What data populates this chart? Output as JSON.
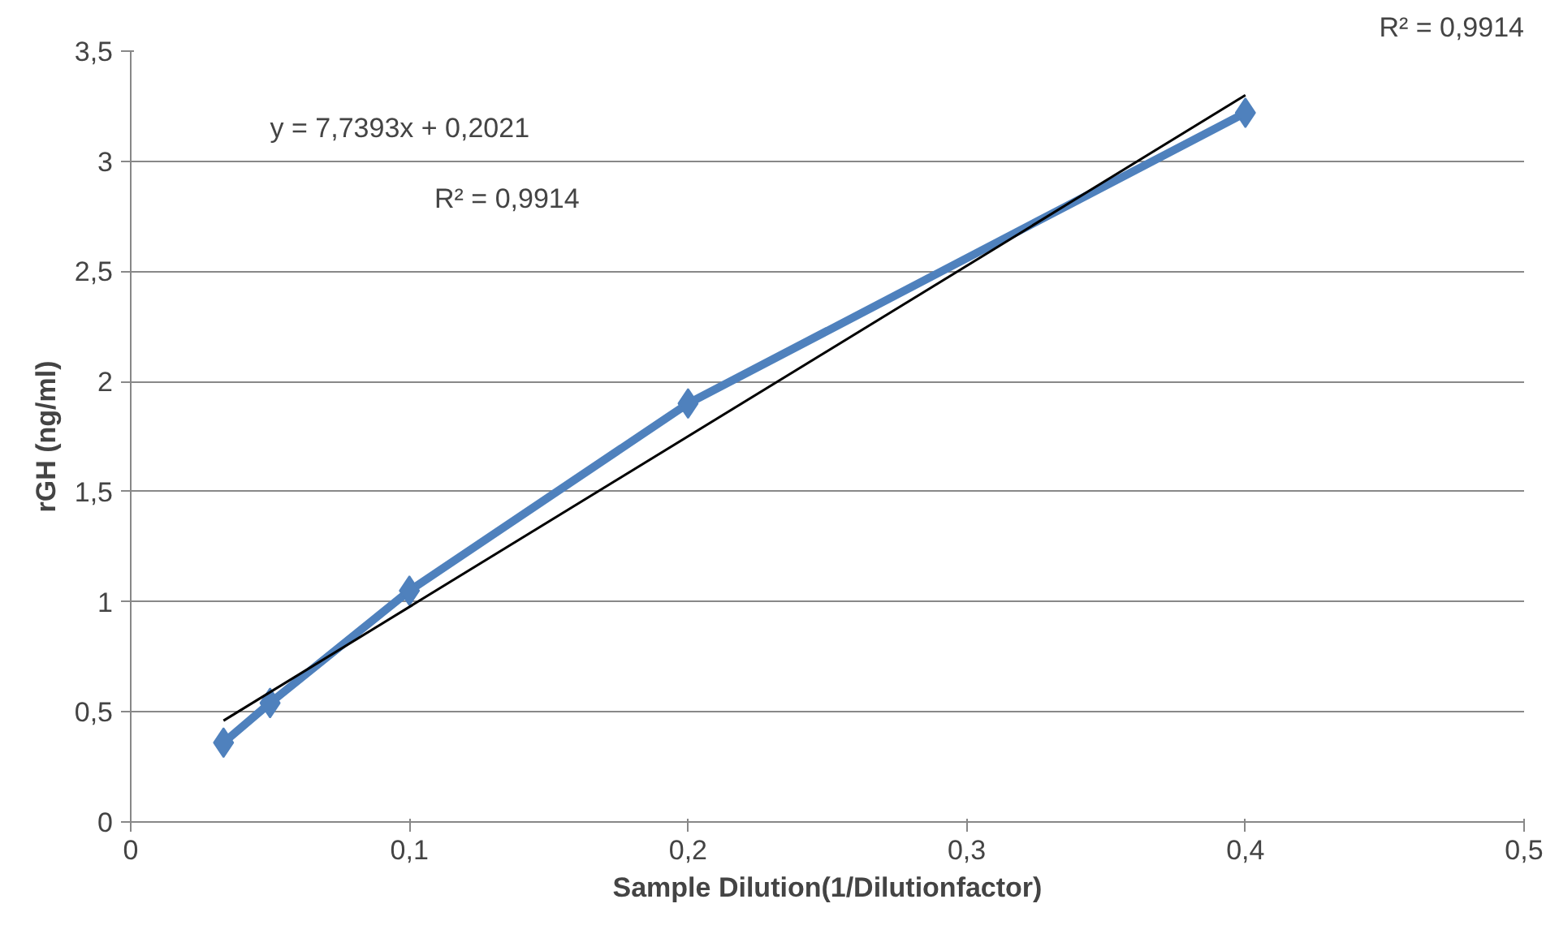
{
  "chart_data": {
    "type": "line",
    "xlabel": "Sample Dilution(1/Dilutionfactor)",
    "ylabel": "rGH (ng/ml)",
    "xlim": [
      0,
      0.5
    ],
    "ylim": [
      0,
      3.5
    ],
    "xticks": [
      0,
      {
        "value": 0.1,
        "label": "0,1"
      },
      {
        "value": 0.2,
        "label": "0,2"
      },
      {
        "value": 0.3,
        "label": "0,3"
      },
      {
        "value": 0.4,
        "label": "0,4"
      },
      {
        "value": 0.5,
        "label": "0,5"
      }
    ],
    "yticks": [
      0,
      {
        "value": 0.5,
        "label": "0,5"
      },
      1,
      {
        "value": 1.5,
        "label": "1,5"
      },
      2,
      {
        "value": 2.5,
        "label": "2,5"
      },
      3,
      {
        "value": 3.5,
        "label": "3,5"
      }
    ],
    "grid": "y",
    "marker": "diamond",
    "series": [
      {
        "color": "#4f81bd",
        "x": [
          0.0333,
          0.05,
          0.1,
          0.2,
          0.4
        ],
        "values": [
          0.36,
          0.54,
          1.05,
          1.9,
          3.22
        ]
      },
      {
        "type": "line",
        "color": "#000000",
        "marker": "none",
        "x": [
          0.0333,
          0.4
        ],
        "values": [
          0.46,
          3.3
        ]
      }
    ],
    "annotations": [
      "y = 7,7393x + 0,2021",
      "R² = 0,9914",
      "R² = 0,9914"
    ]
  }
}
